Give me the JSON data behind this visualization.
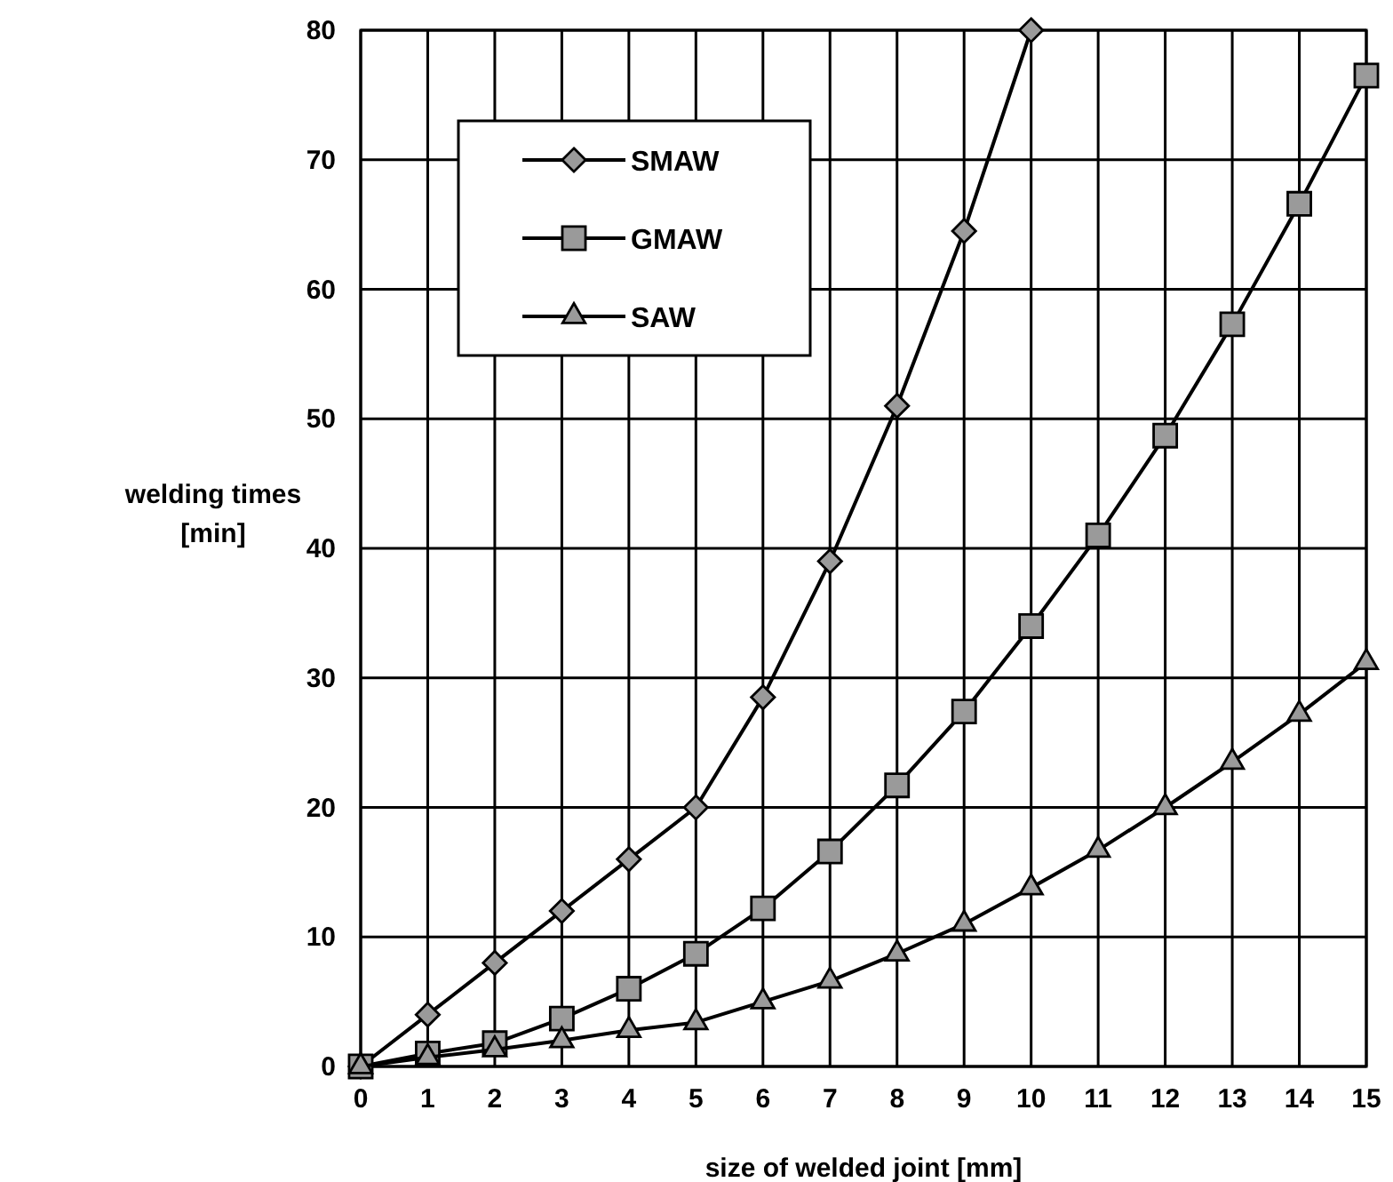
{
  "chart_data": {
    "type": "line",
    "xlabel": "size of welded joint  [mm]",
    "ylabel": "welding times [min]",
    "xlim": [
      0,
      15
    ],
    "xticks": [
      0,
      1,
      2,
      3,
      4,
      5,
      6,
      7,
      8,
      9,
      10,
      11,
      12,
      13,
      14,
      15
    ],
    "ylim": [
      0,
      80
    ],
    "yticks": [
      0,
      10,
      20,
      30,
      40,
      50,
      60,
      70,
      80
    ],
    "grid": true,
    "legend": "top left",
    "line_style": "solid",
    "series": [
      {
        "name": "SMAW",
        "color": "#000000",
        "marker": "diamond",
        "x": [
          0,
          1,
          2,
          3,
          4,
          5,
          6,
          7,
          8,
          9,
          10
        ],
        "values": [
          0,
          4,
          8,
          12,
          16,
          20,
          28.5,
          39,
          51,
          64.5,
          80
        ]
      },
      {
        "name": "GMAW",
        "color": "#000000",
        "marker": "square",
        "x": [
          0,
          1,
          2,
          3,
          4,
          5,
          6,
          7,
          8,
          9,
          10,
          11,
          12,
          13,
          14,
          15
        ],
        "values": [
          0,
          1,
          1.8,
          3.7,
          6,
          8.7,
          12.2,
          16.6,
          21.7,
          27.4,
          34,
          41,
          48.7,
          57.3,
          66.6,
          76.5
        ]
      },
      {
        "name": "SAW",
        "color": "#000000",
        "marker": "triangle",
        "x": [
          0,
          1,
          2,
          3,
          4,
          5,
          6,
          7,
          8,
          9,
          10,
          11,
          12,
          13,
          14,
          15
        ],
        "values": [
          0,
          0.7,
          1.3,
          2,
          2.8,
          3.4,
          5,
          6.6,
          8.7,
          11,
          13.8,
          16.7,
          20,
          23.5,
          27.2,
          31.2
        ]
      }
    ]
  }
}
